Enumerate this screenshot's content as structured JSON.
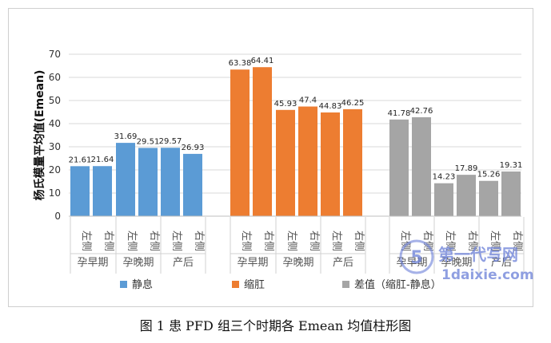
{
  "chart_data": {
    "type": "bar",
    "ylabel": "杨氏模量平均值(Emean)",
    "ylim": [
      0,
      70
    ],
    "yticks": [
      0,
      10,
      20,
      30,
      40,
      50,
      60,
      70
    ],
    "grid": true,
    "legend_position": "bottom",
    "groups": [
      {
        "series": "静息",
        "color": "#5b9bd5",
        "periods": [
          {
            "name": "孕早期",
            "values": [
              21.61,
              21.64
            ]
          },
          {
            "name": "孕晚期",
            "values": [
              31.69,
              29.51
            ]
          },
          {
            "name": "产后",
            "values": [
              29.57,
              26.93
            ]
          }
        ]
      },
      {
        "series": "缩肛",
        "color": "#ed7d31",
        "periods": [
          {
            "name": "孕早期",
            "values": [
              63.38,
              64.41
            ]
          },
          {
            "name": "孕晚期",
            "values": [
              45.93,
              47.4
            ]
          },
          {
            "name": "产后",
            "values": [
              44.83,
              46.25
            ]
          }
        ]
      },
      {
        "series": "差值（缩肛-静息）",
        "color": "#a5a5a5",
        "periods": [
          {
            "name": "孕早期",
            "values": [
              41.78,
              42.76
            ]
          },
          {
            "name": "孕晚期",
            "values": [
              14.23,
              17.89
            ]
          },
          {
            "name": "产后",
            "values": [
              15.26,
              19.31
            ]
          }
        ]
      }
    ],
    "side_labels": [
      "左侧",
      "右侧"
    ],
    "legend": [
      "静息",
      "缩肛",
      "差值（缩肛-静息）"
    ]
  },
  "caption": "图 1  患 PFD 组三个时期各 Emean 均值柱形图",
  "watermark": {
    "line1": "第一代写网",
    "line2": "1daixie.com"
  }
}
